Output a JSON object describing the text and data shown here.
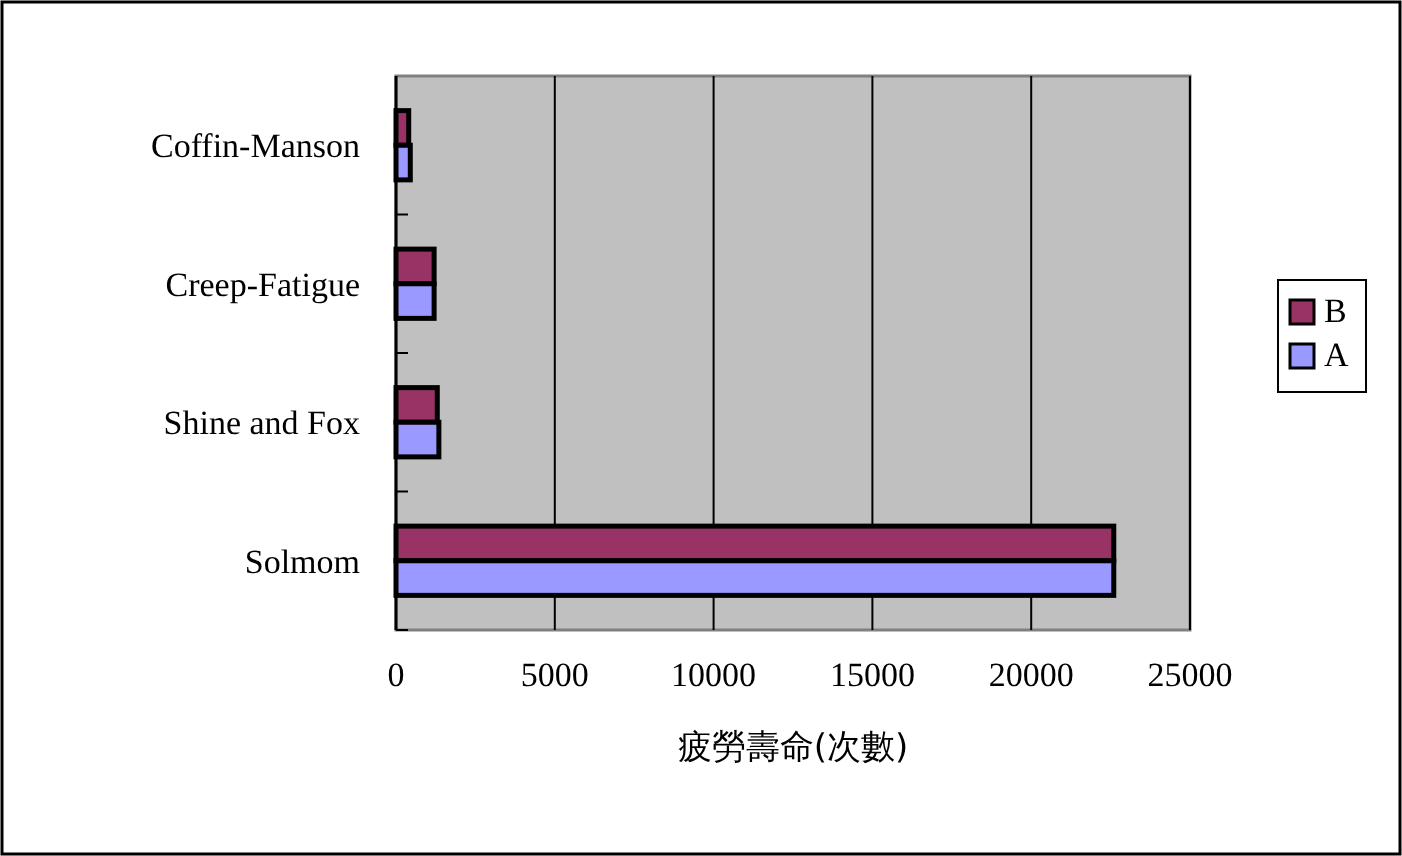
{
  "chart_data": {
    "type": "bar",
    "orientation": "horizontal",
    "categories": [
      "Coffin-Manson",
      "Creep-Fatigue",
      "Shine and Fox",
      "Solmom"
    ],
    "series": [
      {
        "name": "B",
        "color": "#993366",
        "values": [
          400,
          1200,
          1300,
          22600
        ]
      },
      {
        "name": "A",
        "color": "#9999ff",
        "values": [
          450,
          1200,
          1350,
          22600
        ]
      }
    ],
    "xlabel": "疲勞壽命(次數)",
    "xlim": [
      0,
      25000
    ],
    "xticks": [
      0,
      5000,
      10000,
      15000,
      20000,
      25000
    ],
    "grid": "x",
    "legend": "right"
  }
}
